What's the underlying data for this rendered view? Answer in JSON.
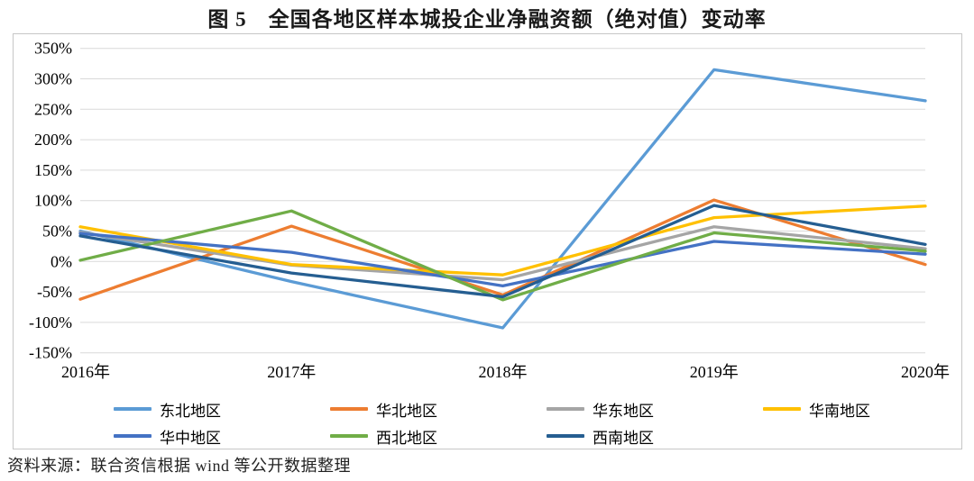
{
  "source_note": "资料来源：联合资信根据 wind 等公开数据整理",
  "chart_data": {
    "type": "line",
    "title": "图 5　全国各地区样本城投企业净融资额（绝对值）变动率",
    "categories": [
      "2016年",
      "2017年",
      "2018年",
      "2019年",
      "2020年"
    ],
    "y_ticks": [
      "350%",
      "300%",
      "250%",
      "200%",
      "150%",
      "100%",
      "50%",
      "0%",
      "-50%",
      "-100%",
      "-150%"
    ],
    "ylim": [
      -150,
      350
    ],
    "y_tick_step": 50,
    "y_unit": "%",
    "grid": true,
    "grid_color": "#d9d9d9",
    "legend_position": "bottom",
    "series": [
      {
        "name": "东北地区",
        "color": "#5B9BD5",
        "values": [
          50,
          -33,
          -109,
          315,
          264
        ]
      },
      {
        "name": "华北地区",
        "color": "#ED7D31",
        "values": [
          -62,
          58,
          -55,
          101,
          -5
        ]
      },
      {
        "name": "华东地区",
        "color": "#A5A5A5",
        "values": [
          48,
          -6,
          -30,
          57,
          21
        ]
      },
      {
        "name": "华南地区",
        "color": "#FFC000",
        "values": [
          57,
          -5,
          -22,
          72,
          91
        ]
      },
      {
        "name": "华中地区",
        "color": "#4472C4",
        "values": [
          46,
          15,
          -40,
          33,
          12
        ]
      },
      {
        "name": "西北地区",
        "color": "#70AD47",
        "values": [
          2,
          83,
          -63,
          47,
          17
        ]
      },
      {
        "name": "西南地区",
        "color": "#255E91",
        "values": [
          42,
          -19,
          -58,
          92,
          28
        ]
      }
    ]
  }
}
